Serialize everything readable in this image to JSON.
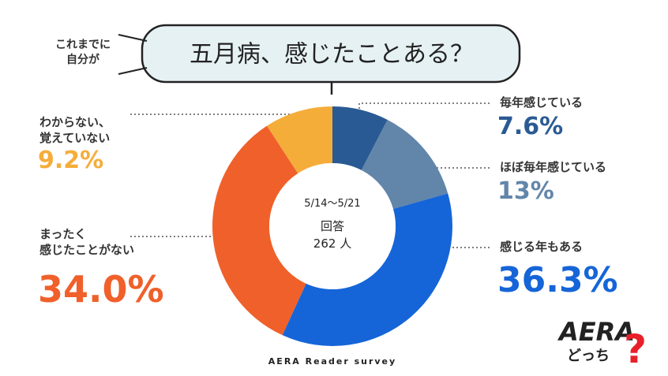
{
  "chart_data": {
    "type": "donut",
    "title": "五月病、感じたことある？",
    "title_prefix": "これまでに\n自分が",
    "center_text": [
      "5/14～5/21",
      "回答",
      "262 人"
    ],
    "source": "AERA Reader survey",
    "logo": {
      "brand": "AERA",
      "sub": "どっち",
      "mark": "?"
    },
    "categories": [
      "毎年感じている",
      "ほぼ毎年感じている",
      "感じる年もある",
      "まったく\n感じたことがない",
      "わからない、\n覚えていない"
    ],
    "values": [
      7.6,
      13,
      36.3,
      34.0,
      9.2
    ],
    "value_labels": [
      "7.6%",
      "13%",
      "36.3%",
      "34.0%",
      "9.2%"
    ],
    "colors": [
      "#2a5a94",
      "#6286aa",
      "#1565d8",
      "#f0602a",
      "#f5ad3a"
    ]
  }
}
